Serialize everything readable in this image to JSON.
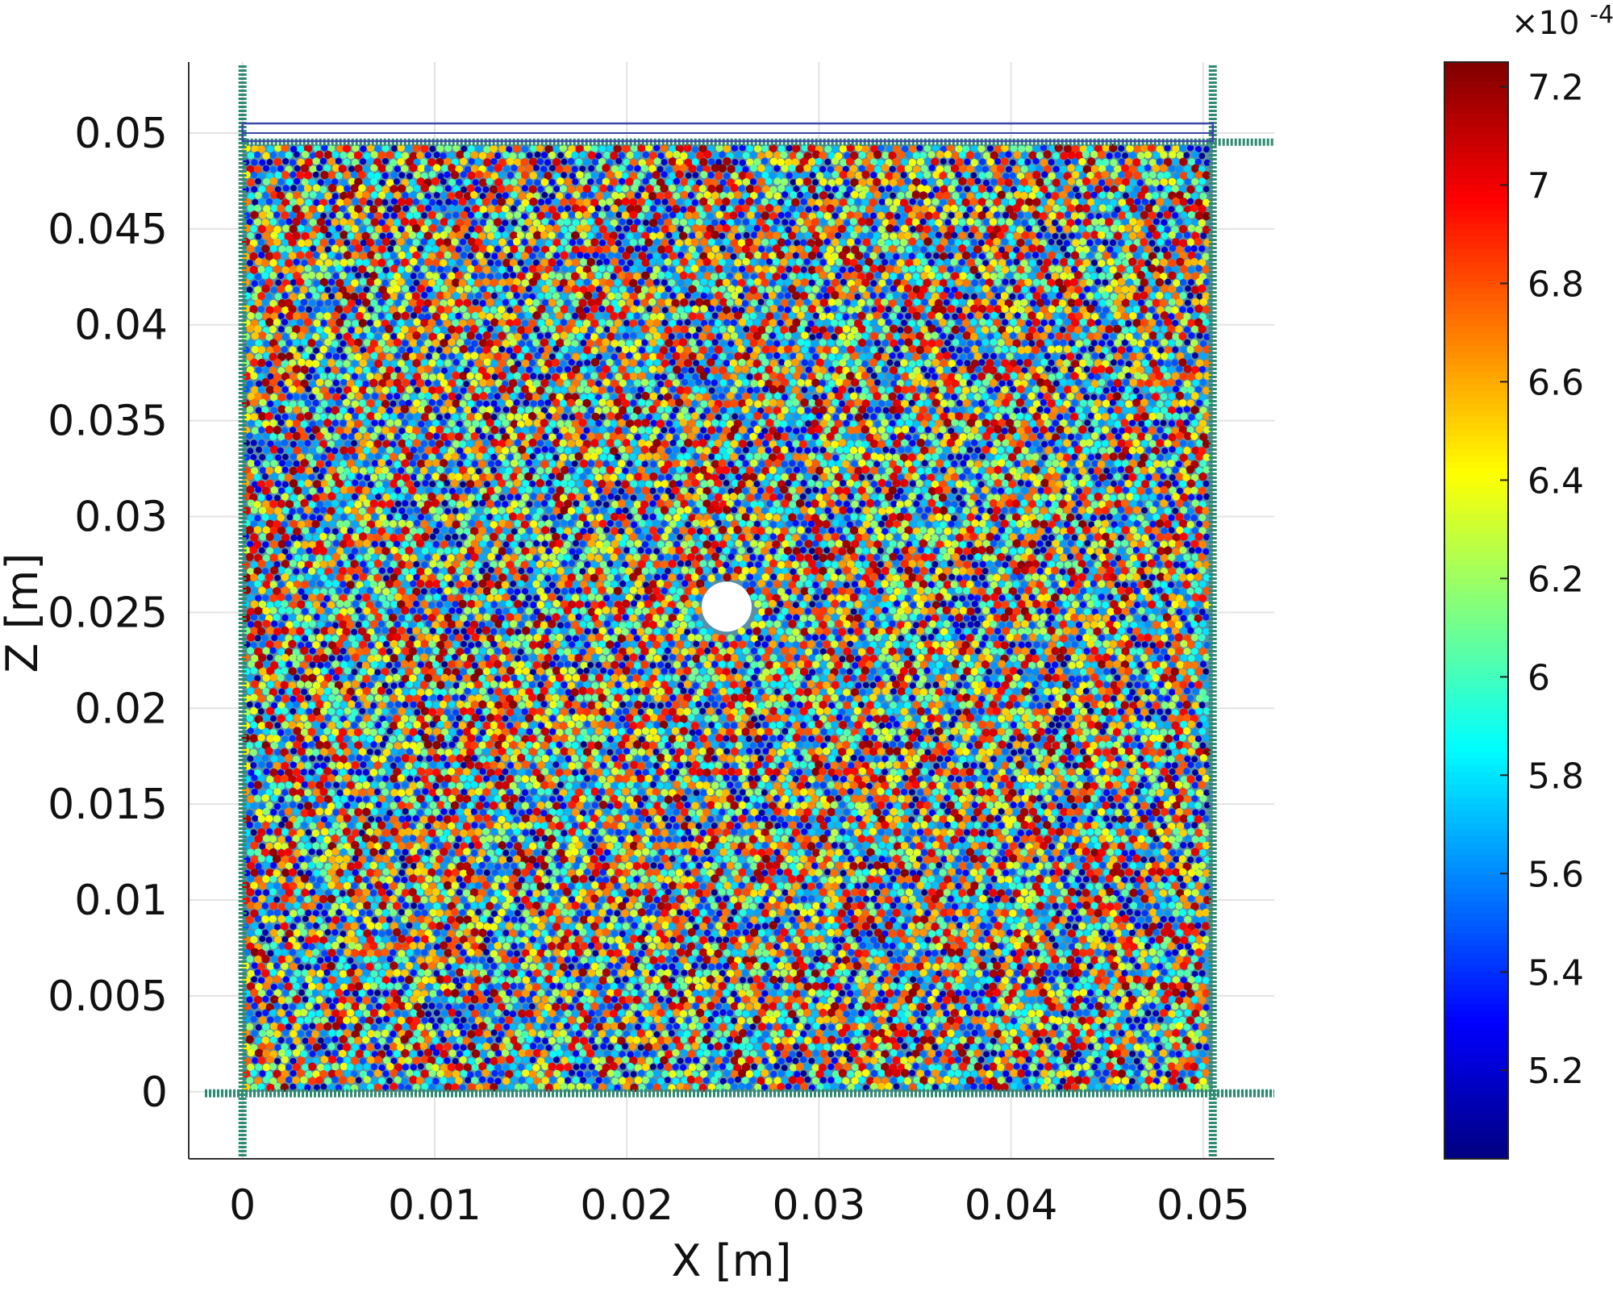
{
  "chart_data": {
    "type": "scatter",
    "description_of_marks": "particle",
    "xlabel": "X [m]",
    "ylabel": "Z [m]",
    "xlim": [
      -0.0028,
      0.0537
    ],
    "ylim": [
      -0.0035,
      0.0537
    ],
    "x_ticks": [
      0,
      0.01,
      0.02,
      0.03,
      0.04,
      0.05
    ],
    "x_tick_labels": [
      "0",
      "0.01",
      "0.02",
      "0.03",
      "0.04",
      "0.05"
    ],
    "y_ticks": [
      0,
      0.005,
      0.01,
      0.015,
      0.02,
      0.025,
      0.03,
      0.035,
      0.04,
      0.045,
      0.05
    ],
    "y_tick_labels": [
      "0",
      "0.005",
      "0.01",
      "0.015",
      "0.02",
      "0.025",
      "0.03",
      "0.035",
      "0.04",
      "0.045",
      "0.05"
    ],
    "grid": true,
    "domain_walls": {
      "x_min": 0,
      "x_max": 0.0505,
      "z_min": 0,
      "z_top_plate": 0.0494
    },
    "cavity_center": [
      0.0252,
      0.0253
    ],
    "cavity_radius": 0.0013,
    "color_by": "particle radius",
    "colorbar": {
      "colormap": "jet",
      "range": [
        5.02,
        7.25
      ],
      "ticks": [
        5.2,
        5.4,
        5.6,
        5.8,
        6,
        6.2,
        6.4,
        6.6,
        6.8,
        7,
        7.2
      ],
      "tick_labels": [
        "5.2",
        "5.4",
        "5.6",
        "5.8",
        "6",
        "6.2",
        "6.4",
        "6.6",
        "6.8",
        "7",
        "7.2"
      ],
      "exponent_label": "×10",
      "exponent_power": "-4"
    },
    "colors": {
      "wall_particles": "#2f8a72",
      "top_plate_outline": "#3d47a8",
      "grid": "#e3e3e3",
      "axes": "#333333",
      "frame_fill": "#5a8fa6"
    }
  }
}
